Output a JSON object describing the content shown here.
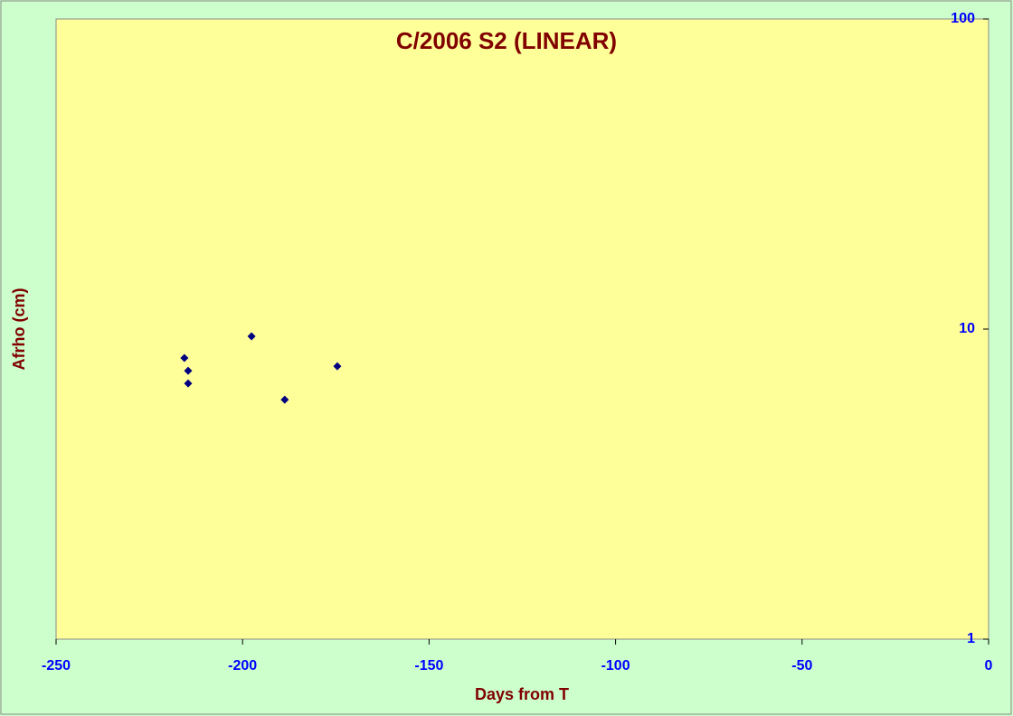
{
  "chart_data": {
    "type": "scatter",
    "title": "C/2006 S2 (LINEAR)",
    "x_label": "Days from T",
    "y_label": "Afrho (cm)",
    "series": [
      {
        "name": "Afrho",
        "color": "#000080",
        "x": [
          -215.6,
          -214.6,
          -214.6,
          -197.6,
          -188.7,
          -174.6
        ],
        "values": [
          8.07,
          7.34,
          6.68,
          9.48,
          5.92,
          7.59
        ]
      }
    ],
    "xlim": [
      -250,
      0
    ],
    "xticks": [
      -250,
      -200,
      -150,
      -100,
      -50,
      0
    ],
    "ylim": [
      1,
      100
    ],
    "yticks": [
      1,
      10,
      100
    ],
    "log_y": true,
    "y_axis_side": "right"
  }
}
